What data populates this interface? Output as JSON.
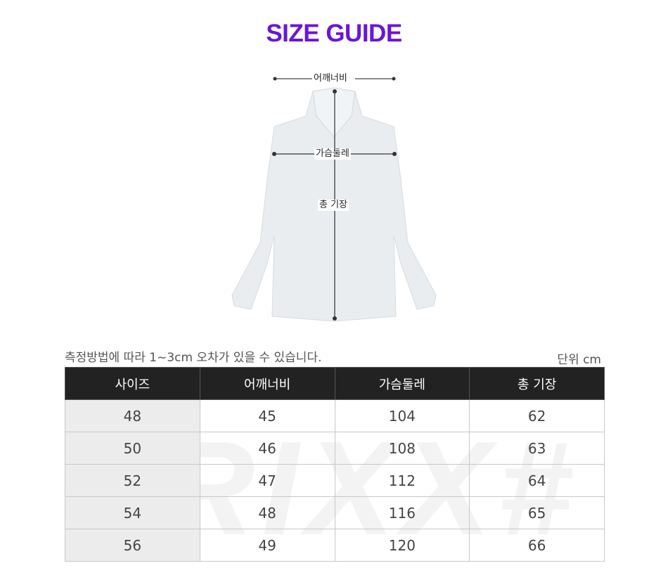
{
  "title": "SIZE GUIDE",
  "diagram": {
    "shoulder_label": "어깨너비",
    "chest_label": "가슴둘레",
    "length_label": "총 기장"
  },
  "note": "측정방법에 따라 1~3cm 오차가 있을 수 있습니다.",
  "unit": "단위 cm",
  "watermark": "RIXX#",
  "table": {
    "headers": [
      "사이즈",
      "어깨너비",
      "가슴둘레",
      "총 기장"
    ],
    "rows": [
      [
        "48",
        "45",
        "104",
        "62"
      ],
      [
        "50",
        "46",
        "108",
        "63"
      ],
      [
        "52",
        "47",
        "112",
        "64"
      ],
      [
        "54",
        "48",
        "116",
        "65"
      ],
      [
        "56",
        "49",
        "120",
        "66"
      ]
    ]
  },
  "colors": {
    "title": "#6a16d8",
    "header_bg": "#222222",
    "size_col_bg": "#ececec"
  }
}
